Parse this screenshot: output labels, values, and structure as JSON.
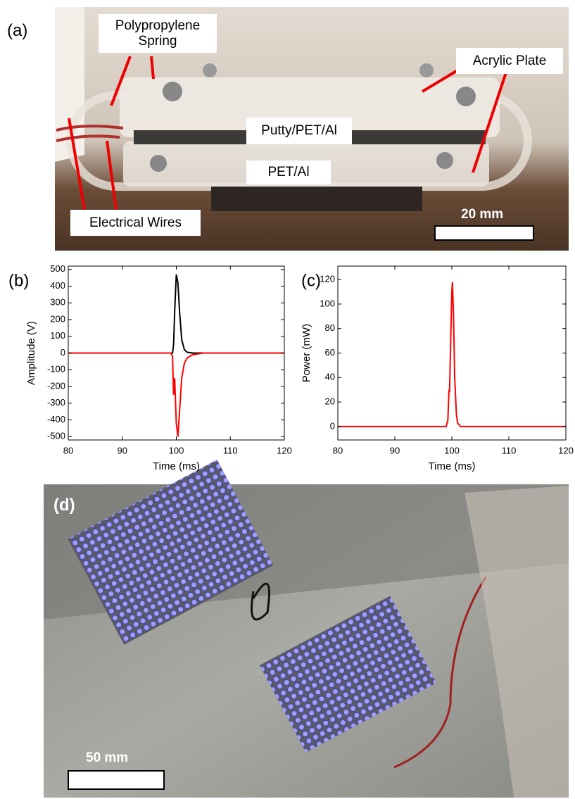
{
  "photo_a": {
    "panel_label": "(a)",
    "labels": [
      "Polypropylene Spring",
      "Acrylic Plate",
      "Putty/PET/Al",
      "PET/Al",
      "Electrical Wires"
    ],
    "scale_bar": "20 mm"
  },
  "photo_d": {
    "panel_label": "(d)",
    "scale_bar": "50 mm"
  },
  "chart_data": [
    {
      "type": "line",
      "panel_label": "(b)",
      "x_label": "Time (ms)",
      "y_label": "Amplitude (V)",
      "x": [
        80,
        95,
        99,
        99.3,
        99.5,
        99.7,
        100,
        100.3,
        100.6,
        101,
        101.5,
        102,
        103,
        105,
        110,
        120
      ],
      "series": [
        {
          "color": "#000000",
          "values": [
            0,
            0,
            0,
            0,
            50,
            250,
            470,
            420,
            250,
            80,
            20,
            5,
            0,
            0,
            0,
            0
          ]
        },
        {
          "color": "#ff0000",
          "values": [
            0,
            0,
            0,
            -20,
            -250,
            -150,
            -420,
            -500,
            -350,
            -150,
            -60,
            -30,
            -10,
            0,
            0,
            0
          ]
        }
      ],
      "xlim": [
        80,
        120
      ],
      "xticks": [
        80,
        90,
        100,
        110,
        120
      ],
      "ylim": [
        -520,
        520
      ],
      "yticks": [
        -500,
        -400,
        -300,
        -200,
        -100,
        0,
        100,
        200,
        300,
        400,
        500
      ]
    },
    {
      "type": "line",
      "panel_label": "(c)",
      "x_label": "Time (ms)",
      "y_label": "Power (mW)",
      "x": [
        80,
        99,
        99.3,
        99.5,
        99.6,
        99.8,
        100,
        100.1,
        100.3,
        100.5,
        100.8,
        101,
        101.5,
        120
      ],
      "series": [
        {
          "color": "#ff0000",
          "values": [
            0,
            0,
            5,
            30,
            28,
            70,
            110,
            118,
            90,
            40,
            10,
            3,
            0,
            0
          ]
        }
      ],
      "xlim": [
        80,
        120
      ],
      "xticks": [
        80,
        90,
        100,
        110,
        120
      ],
      "ylim": [
        -11,
        131
      ],
      "yticks": [
        0,
        20,
        40,
        60,
        80,
        100,
        120
      ]
    }
  ]
}
